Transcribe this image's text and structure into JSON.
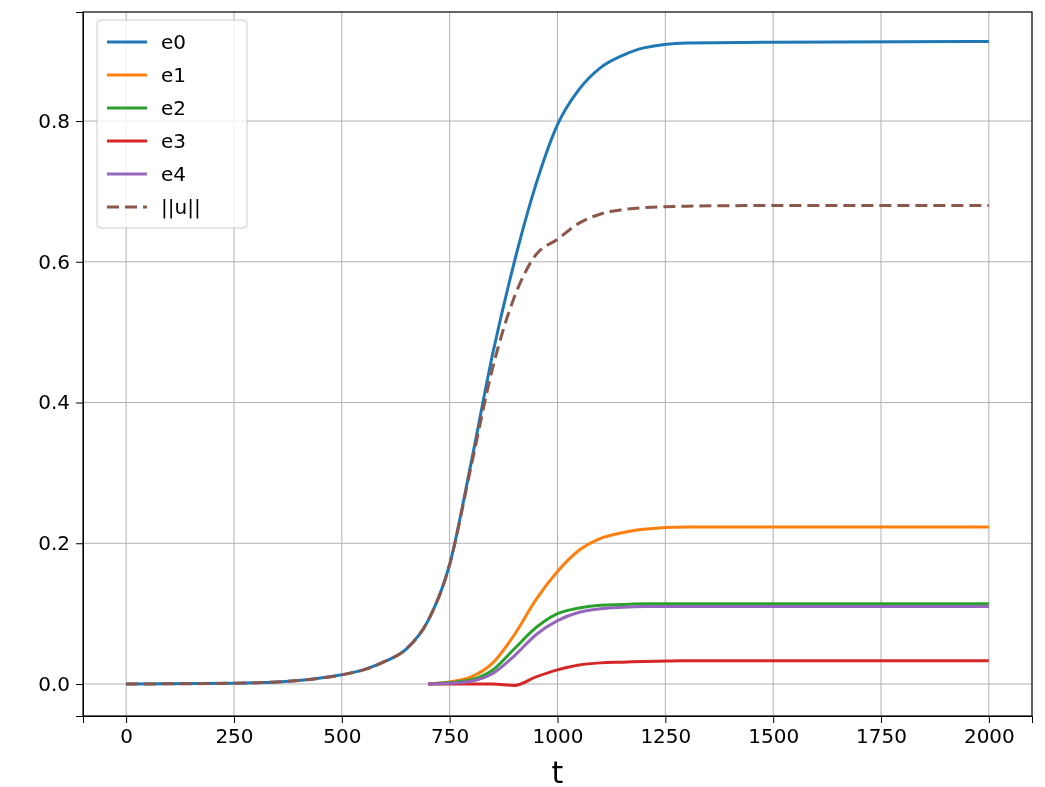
{
  "chart_data": {
    "type": "line",
    "xlabel": "t",
    "xlim": [
      -100,
      2100
    ],
    "ylim": [
      -0.0455,
      0.955
    ],
    "xticks": [
      0,
      250,
      500,
      750,
      1000,
      1250,
      1500,
      1750,
      2000
    ],
    "yticks": [
      {
        "value": 0,
        "label": "0.0"
      },
      {
        "value": 0.2,
        "label": "0.2"
      },
      {
        "value": 0.4,
        "label": "0.4"
      },
      {
        "value": 0.6,
        "label": "0.6"
      },
      {
        "value": 0.8,
        "label": "0.8"
      }
    ],
    "grid": true,
    "legend": "top left",
    "x": [
      0,
      250,
      400,
      500,
      550,
      600,
      650,
      700,
      750,
      800,
      850,
      900,
      950,
      1000,
      1050,
      1100,
      1150,
      1200,
      1300,
      1500,
      2000
    ],
    "series": [
      {
        "name": "e0",
        "color": "#1f77b4",
        "values": [
          0,
          0.001,
          0.005,
          0.013,
          0.02,
          0.032,
          0.05,
          0.09,
          0.17,
          0.315,
          0.47,
          0.6,
          0.71,
          0.795,
          0.845,
          0.876,
          0.893,
          0.904,
          0.911,
          0.912,
          0.913
        ]
      },
      {
        "name": "e1",
        "color": "#ff7f0e",
        "x": [
          700,
          750,
          800,
          850,
          900,
          950,
          1000,
          1050,
          1100,
          1150,
          1200,
          1300,
          1500,
          2000
        ],
        "values": [
          0,
          0.003,
          0.01,
          0.03,
          0.07,
          0.12,
          0.16,
          0.19,
          0.207,
          0.215,
          0.22,
          0.223,
          0.223,
          0.223
        ]
      },
      {
        "name": "e2",
        "color": "#2ca02c",
        "x": [
          700,
          750,
          800,
          850,
          900,
          950,
          1000,
          1050,
          1100,
          1150,
          1200,
          1300,
          1500,
          2000
        ],
        "values": [
          0,
          0.002,
          0.006,
          0.02,
          0.05,
          0.08,
          0.1,
          0.108,
          0.112,
          0.113,
          0.114,
          0.114,
          0.114,
          0.114
        ]
      },
      {
        "name": "e3",
        "color": "#d62728",
        "x": [
          700,
          750,
          800,
          850,
          900,
          950,
          1000,
          1050,
          1100,
          1150,
          1200,
          1300,
          1500,
          2000
        ],
        "values": [
          0,
          0,
          0,
          0,
          -0.002,
          0.01,
          0.02,
          0.027,
          0.03,
          0.031,
          0.032,
          0.033,
          0.033,
          0.033
        ]
      },
      {
        "name": "e4",
        "color": "#9467bd",
        "x": [
          700,
          750,
          800,
          850,
          900,
          950,
          1000,
          1050,
          1100,
          1150,
          1200,
          1300,
          1500,
          2000
        ],
        "values": [
          0,
          0.001,
          0.004,
          0.015,
          0.04,
          0.07,
          0.09,
          0.102,
          0.107,
          0.109,
          0.11,
          0.11,
          0.11,
          0.11
        ]
      },
      {
        "name": "||u||",
        "color": "#8c564b",
        "line_style": "dashed",
        "values": [
          0,
          0.001,
          0.005,
          0.013,
          0.02,
          0.032,
          0.05,
          0.09,
          0.17,
          0.31,
          0.45,
          0.55,
          0.61,
          0.632,
          0.655,
          0.668,
          0.674,
          0.677,
          0.679,
          0.68,
          0.68
        ]
      }
    ]
  }
}
